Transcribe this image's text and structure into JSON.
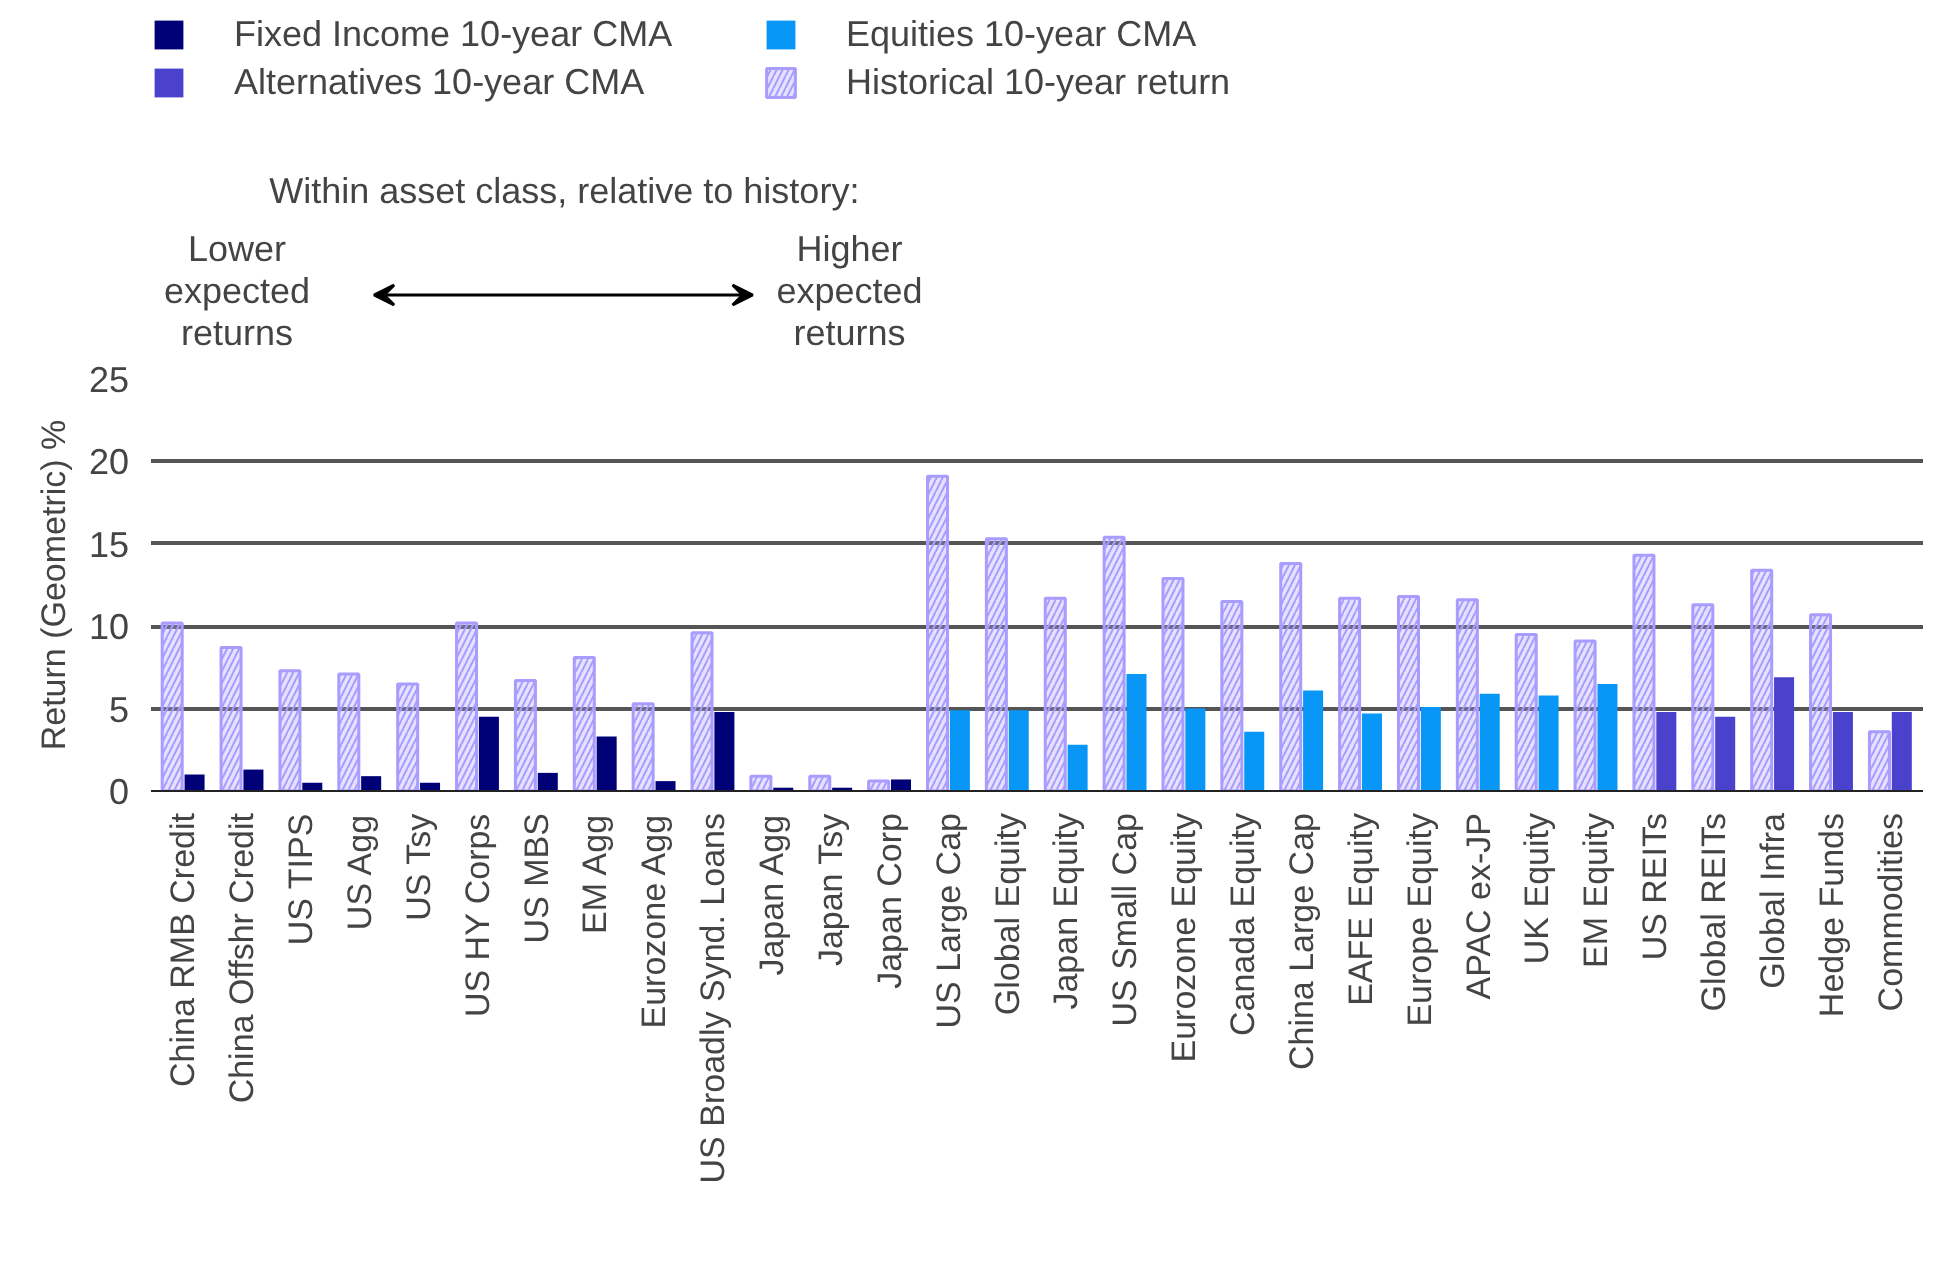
{
  "chart_data": {
    "type": "bar",
    "ylabel": "Return (Geometric) %",
    "annotations": [
      "Within asset class, relative to history:",
      "Lower\nexpected\nreturns",
      "Higher\nexpected\nreturns"
    ],
    "categories": [
      "China RMB Credit",
      "China Offshr Credit",
      "US TIPS",
      "US Agg",
      "US Tsy",
      "US HY Corps",
      "US MBS",
      "EM Agg",
      "Eurozone Agg",
      "US Broadly Synd. Loans",
      "Japan Agg",
      "Japan Tsy",
      "Japan Corp",
      "US Large Cap",
      "Global Equity",
      "Japan Equity",
      "US Small Cap",
      "Eurozone Equity",
      "Canada Equity",
      "China Large Cap",
      "EAFE Equity",
      "Europe Equity",
      "APAC ex-JP",
      "UK Equity",
      "EM Equity",
      "US REITs",
      "Global REITs",
      "Global Infra",
      "Hedge Funds",
      "Commodities"
    ],
    "series": [
      {
        "name": "Historical 10-year return",
        "color": "#a99cff",
        "values": [
          10.2,
          8.7,
          7.3,
          7.1,
          6.5,
          10.2,
          6.7,
          8.1,
          5.3,
          9.6,
          0.9,
          0.9,
          0.6,
          19.1,
          15.3,
          11.7,
          15.4,
          12.9,
          11.5,
          13.8,
          11.7,
          11.8,
          11.6,
          9.5,
          9.1,
          14.3,
          11.3,
          13.4,
          10.7,
          3.6
        ]
      },
      {
        "name": "Fixed Income 10-year CMA",
        "color": "#000077",
        "values": [
          1.0,
          1.3,
          0.5,
          0.9,
          0.5,
          4.5,
          1.1,
          3.3,
          0.6,
          4.8,
          0.2,
          0.2,
          0.7,
          null,
          null,
          null,
          null,
          null,
          null,
          null,
          null,
          null,
          null,
          null,
          null,
          null,
          null,
          null,
          null,
          null
        ]
      },
      {
        "name": "Equities 10-year CMA",
        "color": "#0897f7",
        "values": [
          null,
          null,
          null,
          null,
          null,
          null,
          null,
          null,
          null,
          null,
          null,
          null,
          null,
          4.9,
          4.9,
          2.8,
          7.1,
          5.0,
          3.6,
          6.1,
          4.7,
          5.1,
          5.9,
          5.8,
          6.5,
          null,
          null,
          null,
          null,
          null
        ]
      },
      {
        "name": "Alternatives 10-year CMA",
        "color": "#4a42cc",
        "values": [
          null,
          null,
          null,
          null,
          null,
          null,
          null,
          null,
          null,
          null,
          null,
          null,
          null,
          null,
          null,
          null,
          null,
          null,
          null,
          null,
          null,
          null,
          null,
          null,
          null,
          4.8,
          4.5,
          6.9,
          4.8,
          4.8
        ]
      }
    ],
    "ylim": [
      0,
      25
    ],
    "yticks": [
      0,
      5,
      10,
      15,
      20,
      25
    ],
    "grid": "y",
    "legend": "top left"
  }
}
